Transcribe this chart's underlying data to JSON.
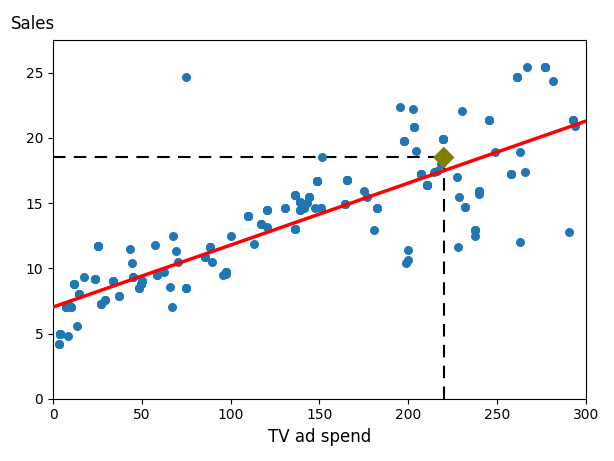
{
  "xlabel": "TV ad spend",
  "ylabel": "Sales",
  "xlim": [
    0,
    300
  ],
  "ylim": [
    0,
    27.5
  ],
  "xticks": [
    0,
    50,
    100,
    150,
    200,
    250,
    300
  ],
  "yticks": [
    0,
    5,
    10,
    15,
    20,
    25
  ],
  "scatter_color": "#1f77b4",
  "scatter_size": 30,
  "line_color": "red",
  "line_intercept": 7.03,
  "line_slope": 0.04753,
  "highlight_x": 220.0,
  "highlight_y": 18.5,
  "highlight_color": "#808000",
  "highlight_marker": "D",
  "highlight_size": 120,
  "tv": [
    230.1,
    44.5,
    17.2,
    151.5,
    180.8,
    8.7,
    57.5,
    120.2,
    8.6,
    199.8,
    66.1,
    214.7,
    23.8,
    97.5,
    204.1,
    195.4,
    67.8,
    281.4,
    69.2,
    147.3,
    218.4,
    237.4,
    13.2,
    228.3,
    62.3,
    262.9,
    142.9,
    240.1,
    248.8,
    70.6,
    292.9,
    112.9,
    97.2,
    265.6,
    95.7,
    290.7,
    266.9,
    74.7,
    43.1,
    228.0,
    202.5,
    177.0,
    293.6,
    206.9,
    25.1,
    175.1,
    89.7,
    239.9,
    227.2,
    66.9,
    199.8,
    100.4,
    216.4,
    182.6,
    262.7,
    198.9,
    7.3,
    136.2,
    210.8,
    4.1,
    197.6,
    120.5,
    34.0,
    203.1,
    14.7,
    117.2,
    237.4,
    74.7,
    276.9,
    11.7,
    88.3,
    143.9,
    136.2,
    206.9,
    210.8,
    109.8,
    26.8,
    164.5,
    85.4,
    219.8,
    257.7,
    261.3,
    25.1,
    4.1,
    139.2,
    148.5,
    165.6,
    49.7,
    50.0,
    245.7,
    150.6,
    219.8,
    45.1,
    130.6,
    29.1,
    165.6,
    97.5,
    3.1,
    148.5,
    48.3,
    36.9,
    109.8,
    141.3,
    10.3,
    58.5,
    231.8,
    292.9,
    240.1,
    23.8,
    139.3,
    182.6,
    7.3,
    136.2,
    210.8,
    4.1,
    197.6,
    120.5,
    34.0,
    203.1,
    14.7,
    117.2,
    237.4,
    74.7,
    276.9,
    11.7,
    88.3,
    143.9,
    136.2,
    206.9,
    210.8,
    109.8,
    26.8,
    164.5,
    85.4,
    219.8,
    257.7,
    261.3,
    25.1,
    4.1,
    139.2,
    148.5,
    165.6,
    49.7,
    50.0,
    245.7,
    150.6,
    219.8,
    45.1,
    130.6,
    29.1,
    165.6,
    97.5,
    3.1,
    148.5,
    48.3,
    36.9,
    109.8,
    141.3,
    10.3,
    58.5,
    231.8,
    292.9,
    240.1,
    23.8,
    139.3,
    182.6,
    7.3,
    136.2,
    210.8,
    4.1,
    197.6,
    120.5,
    34.0,
    203.1,
    14.7,
    117.2,
    237.4,
    74.7,
    276.9,
    11.7,
    88.3,
    143.9,
    136.2,
    206.9,
    210.8,
    109.8,
    26.8,
    164.5,
    85.4,
    219.8,
    257.7,
    261.3,
    25.1,
    4.1,
    139.2,
    148.5,
    165.6,
    49.7,
    50.0,
    245.7
  ],
  "sales": [
    22.1,
    10.4,
    9.3,
    18.5,
    12.9,
    7.2,
    11.8,
    13.2,
    4.8,
    10.6,
    8.6,
    17.4,
    9.2,
    9.7,
    19.0,
    22.4,
    12.5,
    24.4,
    11.3,
    14.6,
    18.0,
    12.5,
    5.6,
    15.5,
    9.7,
    12.0,
    15.0,
    15.9,
    18.9,
    10.5,
    21.4,
    11.9,
    9.6,
    17.4,
    9.5,
    12.8,
    25.4,
    24.7,
    11.5,
    11.6,
    22.2,
    15.5,
    20.9,
    17.2,
    11.7,
    15.9,
    10.5,
    15.7,
    17.0,
    7.0,
    11.4,
    12.5,
    17.5,
    14.6,
    18.9,
    10.4,
    7.0,
    13.0,
    16.4,
    5.0,
    19.8,
    14.5,
    9.0,
    20.8,
    8.0,
    13.4,
    12.9,
    8.5,
    25.4,
    8.8,
    11.6,
    15.5,
    15.6,
    17.2,
    16.4,
    14.0,
    7.3,
    14.9,
    10.9,
    19.9,
    17.2,
    24.7,
    11.7,
    5.0,
    15.1,
    16.7,
    16.8,
    8.8,
    9.0,
    21.4,
    14.6,
    19.9,
    9.3,
    14.6,
    7.6,
    16.8,
    9.7,
    4.2,
    16.7,
    8.5,
    7.9,
    14.0,
    14.6,
    7.0,
    9.5,
    14.7,
    21.4,
    15.9,
    9.2,
    14.5,
    14.6,
    7.0,
    13.0,
    16.4,
    5.0,
    19.8,
    14.5,
    9.0,
    20.8,
    8.0,
    13.4,
    12.9,
    8.5,
    25.4,
    8.8,
    11.6,
    15.5,
    15.6,
    17.2,
    16.4,
    14.0,
    7.3,
    14.9,
    10.9,
    19.9,
    17.2,
    24.7,
    11.7,
    5.0,
    15.1,
    16.7,
    16.8,
    8.8,
    9.0,
    21.4,
    14.6,
    19.9,
    9.3,
    14.6,
    7.6,
    16.8,
    9.7,
    4.2,
    16.7,
    8.5,
    7.9,
    14.0,
    14.6,
    7.0,
    9.5,
    14.7,
    21.4,
    15.9,
    9.2,
    14.5,
    14.6,
    7.0,
    13.0,
    16.4,
    5.0,
    19.8,
    14.5,
    9.0,
    20.8,
    8.0,
    13.4,
    12.9,
    8.5,
    25.4,
    8.8,
    11.6,
    15.5,
    15.6,
    17.2,
    16.4,
    14.0,
    7.3,
    14.9,
    10.9,
    19.9,
    17.2,
    24.7,
    11.7,
    5.0,
    15.1,
    16.7,
    16.8,
    8.8,
    9.0,
    21.4
  ]
}
